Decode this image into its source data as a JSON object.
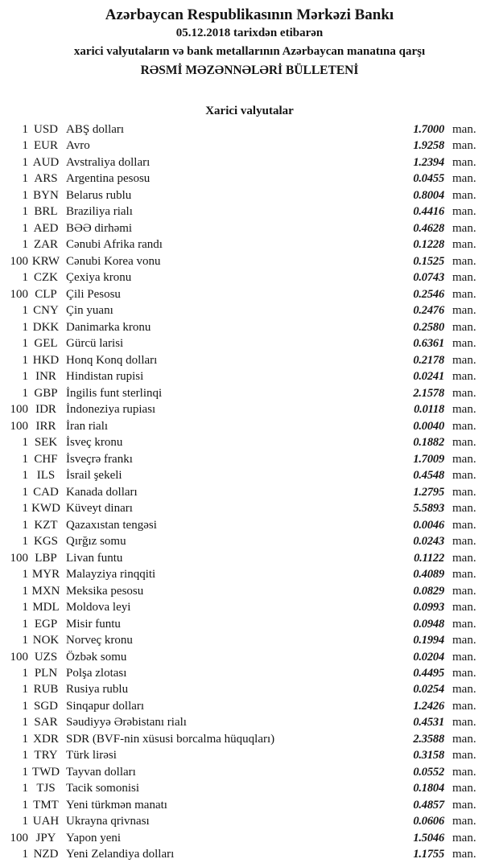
{
  "header": {
    "bank_name": "Azərbaycan Respublikasının Mərkəzi Bankı",
    "date_line": "05.12.2018 tarixdən etibarən",
    "subject_line": "xarici valyutaların və bank metallarının Azərbaycan manatına qarşı",
    "bulletin_title": "RƏSMİ MƏZƏNNƏLƏRİ BÜLLETENİ"
  },
  "section": {
    "title": "Xarici valyutalar"
  },
  "rates": [
    {
      "qty": "1",
      "code": "USD",
      "name": "ABŞ dolları",
      "rate": "1.7000",
      "unit": "man."
    },
    {
      "qty": "1",
      "code": "EUR",
      "name": "Avro",
      "rate": "1.9258",
      "unit": "man."
    },
    {
      "qty": "1",
      "code": "AUD",
      "name": "Avstraliya dolları",
      "rate": "1.2394",
      "unit": "man."
    },
    {
      "qty": "1",
      "code": "ARS",
      "name": "Argentina pesosu",
      "rate": "0.0455",
      "unit": "man."
    },
    {
      "qty": "1",
      "code": "BYN",
      "name": "Belarus rublu",
      "rate": "0.8004",
      "unit": "man."
    },
    {
      "qty": "1",
      "code": "BRL",
      "name": "Braziliya rialı",
      "rate": "0.4416",
      "unit": "man."
    },
    {
      "qty": "1",
      "code": "AED",
      "name": "BƏƏ dirhəmi",
      "rate": "0.4628",
      "unit": "man."
    },
    {
      "qty": "1",
      "code": "ZAR",
      "name": "Cənubi Afrika randı",
      "rate": "0.1228",
      "unit": "man."
    },
    {
      "qty": "100",
      "code": "KRW",
      "name": "Cənubi Korea vonu",
      "rate": "0.1525",
      "unit": "man."
    },
    {
      "qty": "1",
      "code": "CZK",
      "name": "Çexiya kronu",
      "rate": "0.0743",
      "unit": "man."
    },
    {
      "qty": "100",
      "code": "CLP",
      "name": "Çili Pesosu",
      "rate": "0.2546",
      "unit": "man."
    },
    {
      "qty": "1",
      "code": "CNY",
      "name": "Çin yuanı",
      "rate": "0.2476",
      "unit": "man."
    },
    {
      "qty": "1",
      "code": "DKK",
      "name": "Danimarka kronu",
      "rate": "0.2580",
      "unit": "man."
    },
    {
      "qty": "1",
      "code": "GEL",
      "name": "Gürcü larisi",
      "rate": "0.6361",
      "unit": "man."
    },
    {
      "qty": "1",
      "code": "HKD",
      "name": "Honq Konq dolları",
      "rate": "0.2178",
      "unit": "man."
    },
    {
      "qty": "1",
      "code": "INR",
      "name": "Hindistan rupisi",
      "rate": "0.0241",
      "unit": "man."
    },
    {
      "qty": "1",
      "code": "GBP",
      "name": "İngilis funt sterlinqi",
      "rate": "2.1578",
      "unit": "man."
    },
    {
      "qty": "100",
      "code": "IDR",
      "name": "İndoneziya rupiası",
      "rate": "0.0118",
      "unit": "man."
    },
    {
      "qty": "100",
      "code": "IRR",
      "name": "İran rialı",
      "rate": "0.0040",
      "unit": "man."
    },
    {
      "qty": "1",
      "code": "SEK",
      "name": "İsveç kronu",
      "rate": "0.1882",
      "unit": "man."
    },
    {
      "qty": "1",
      "code": "CHF",
      "name": "İsveçrə frankı",
      "rate": "1.7009",
      "unit": "man."
    },
    {
      "qty": "1",
      "code": "ILS",
      "name": "İsrail şekeli",
      "rate": "0.4548",
      "unit": "man."
    },
    {
      "qty": "1",
      "code": "CAD",
      "name": "Kanada dolları",
      "rate": "1.2795",
      "unit": "man."
    },
    {
      "qty": "1",
      "code": "KWD",
      "name": "Küveyt dinarı",
      "rate": "5.5893",
      "unit": "man."
    },
    {
      "qty": "1",
      "code": "KZT",
      "name": "Qazaxıstan tengəsi",
      "rate": "0.0046",
      "unit": "man."
    },
    {
      "qty": "1",
      "code": "KGS",
      "name": "Qırğız somu",
      "rate": "0.0243",
      "unit": "man."
    },
    {
      "qty": "100",
      "code": "LBP",
      "name": "Livan funtu",
      "rate": "0.1122",
      "unit": "man."
    },
    {
      "qty": "1",
      "code": "MYR",
      "name": "Malayziya rinqqiti",
      "rate": "0.4089",
      "unit": "man."
    },
    {
      "qty": "1",
      "code": "MXN",
      "name": "Meksika pesosu",
      "rate": "0.0829",
      "unit": "man."
    },
    {
      "qty": "1",
      "code": "MDL",
      "name": "Moldova leyi",
      "rate": "0.0993",
      "unit": "man."
    },
    {
      "qty": "1",
      "code": "EGP",
      "name": "Misir funtu",
      "rate": "0.0948",
      "unit": "man."
    },
    {
      "qty": "1",
      "code": "NOK",
      "name": "Norveç kronu",
      "rate": "0.1994",
      "unit": "man."
    },
    {
      "qty": "100",
      "code": "UZS",
      "name": "Özbək somu",
      "rate": "0.0204",
      "unit": "man."
    },
    {
      "qty": "1",
      "code": "PLN",
      "name": "Polşa zlotası",
      "rate": "0.4495",
      "unit": "man."
    },
    {
      "qty": "1",
      "code": "RUB",
      "name": "Rusiya rublu",
      "rate": "0.0254",
      "unit": "man."
    },
    {
      "qty": "1",
      "code": "SGD",
      "name": "Sinqapur dolları",
      "rate": "1.2426",
      "unit": "man."
    },
    {
      "qty": "1",
      "code": "SAR",
      "name": "Səudiyyə Ərəbistanı rialı",
      "rate": "0.4531",
      "unit": "man."
    },
    {
      "qty": "1",
      "code": "XDR",
      "name": "SDR (BVF-nin xüsusi borcalma hüquqları)",
      "rate": "2.3588",
      "unit": "man."
    },
    {
      "qty": "1",
      "code": "TRY",
      "name": "Türk lirəsi",
      "rate": "0.3158",
      "unit": "man."
    },
    {
      "qty": "1",
      "code": "TWD",
      "name": "Tayvan dolları",
      "rate": "0.0552",
      "unit": "man."
    },
    {
      "qty": "1",
      "code": "TJS",
      "name": "Tacik somonisi",
      "rate": "0.1804",
      "unit": "man."
    },
    {
      "qty": "1",
      "code": "TMT",
      "name": "Yeni türkmən manatı",
      "rate": "0.4857",
      "unit": "man."
    },
    {
      "qty": "1",
      "code": "UAH",
      "name": "Ukrayna qrivnası",
      "rate": "0.0606",
      "unit": "man."
    },
    {
      "qty": "100",
      "code": "JPY",
      "name": "Yapon yeni",
      "rate": "1.5046",
      "unit": "man."
    },
    {
      "qty": "1",
      "code": "NZD",
      "name": "Yeni Zelandiya dolları",
      "rate": "1.1755",
      "unit": "man."
    }
  ]
}
